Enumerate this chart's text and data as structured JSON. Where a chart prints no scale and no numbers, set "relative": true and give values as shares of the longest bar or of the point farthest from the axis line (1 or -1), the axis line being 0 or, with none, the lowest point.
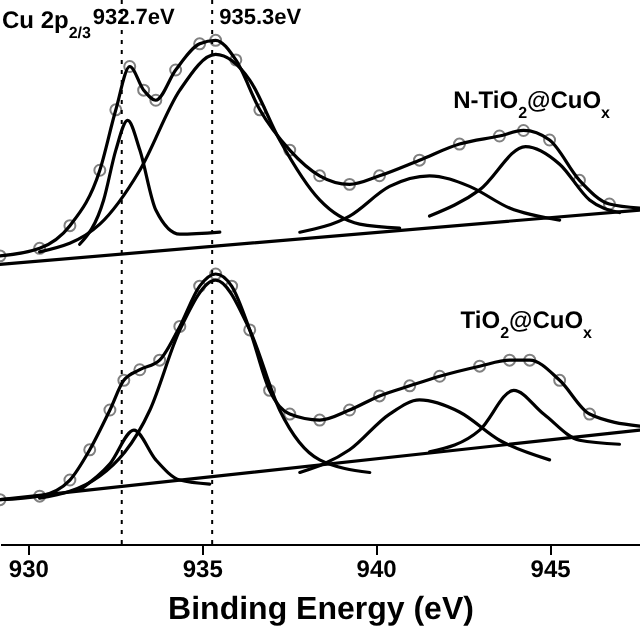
{
  "chart_data": {
    "type": "line",
    "xlabel": "Binding Energy (eV)",
    "relative": true,
    "xlim": [
      929.2,
      947.6
    ],
    "xticks": [
      930,
      935,
      940,
      945
    ],
    "line_style": "solid",
    "series": [
      {
        "type": "scatter",
        "marker": "circle",
        "color": "#808080",
        "x": [
          929.2,
          930.34,
          931.21,
          932.07,
          932.53,
          932.93,
          933.33,
          933.68,
          934.25,
          934.94,
          935.4,
          935.98,
          936.67,
          937.53,
          938.39,
          939.25,
          940.11,
          941.26,
          942.41,
          943.56,
          944.25,
          945.0,
          945.86,
          946.72
        ],
        "values": [
          0.572,
          0.587,
          0.632,
          0.742,
          0.862,
          0.948,
          0.901,
          0.881,
          0.941,
          0.993,
          1,
          0.961,
          0.862,
          0.782,
          0.731,
          0.714,
          0.731,
          0.762,
          0.794,
          0.81,
          0.821,
          0.802,
          0.722,
          0.675
        ]
      },
      {
        "color": "#000000",
        "x": [
          929.2,
          930.34,
          931.21,
          932.07,
          932.53,
          932.93,
          933.33,
          933.68,
          934.25,
          934.94,
          935.4,
          935.98,
          936.67,
          937.53,
          938.39,
          939.25,
          940.11,
          941.26,
          942.41,
          943.56,
          944.25,
          945.0,
          945.86,
          946.72,
          947.59
        ],
        "values": [
          0.572,
          0.587,
          0.632,
          0.742,
          0.862,
          0.948,
          0.901,
          0.881,
          0.941,
          0.993,
          1,
          0.961,
          0.862,
          0.782,
          0.731,
          0.714,
          0.731,
          0.762,
          0.794,
          0.81,
          0.821,
          0.802,
          0.722,
          0.675,
          0.667
        ]
      },
      {
        "color": "#000000",
        "x": [
          929.2,
          947.59
        ],
        "values": [
          0.555,
          0.663
        ]
      },
      {
        "color": "#000000",
        "x": [
          931.49,
          932.18,
          932.53,
          932.87,
          933.22,
          933.68,
          934.37,
          935.52
        ],
        "values": [
          0.595,
          0.683,
          0.782,
          0.841,
          0.782,
          0.663,
          0.615,
          0.619
        ]
      },
      {
        "color": "#000000",
        "x": [
          930.34,
          932.07,
          933.22,
          934.37,
          935.4,
          936.38,
          937.24,
          938.39,
          939.54,
          940.69
        ],
        "values": [
          0.58,
          0.635,
          0.742,
          0.901,
          0.972,
          0.921,
          0.802,
          0.683,
          0.635,
          0.627
        ]
      },
      {
        "color": "#000000",
        "x": [
          937.82,
          939.25,
          940.4,
          941.55,
          942.7,
          943.85,
          945.29
        ],
        "values": [
          0.619,
          0.651,
          0.71,
          0.731,
          0.71,
          0.667,
          0.643
        ]
      },
      {
        "color": "#000000",
        "x": [
          941.55,
          942.99,
          944.31,
          945.29,
          946.15,
          947.01
        ],
        "values": [
          0.651,
          0.703,
          0.789,
          0.754,
          0.683,
          0.658
        ]
      },
      {
        "type": "scatter",
        "marker": "circle",
        "color": "#808080",
        "x": [
          929.2,
          930.34,
          931.21,
          931.78,
          932.36,
          932.76,
          933.22,
          933.79,
          934.37,
          934.94,
          935.4,
          935.86,
          936.38,
          936.95,
          937.53,
          938.39,
          939.25,
          940.11,
          940.98,
          941.84,
          942.99,
          943.85,
          944.43,
          945.29,
          946.15
        ],
        "values": [
          0.088,
          0.095,
          0.127,
          0.187,
          0.266,
          0.325,
          0.346,
          0.365,
          0.432,
          0.512,
          0.536,
          0.512,
          0.425,
          0.305,
          0.258,
          0.246,
          0.266,
          0.294,
          0.314,
          0.333,
          0.353,
          0.365,
          0.365,
          0.325,
          0.258
        ]
      },
      {
        "color": "#000000",
        "x": [
          929.2,
          930.34,
          931.21,
          931.78,
          932.36,
          932.76,
          933.22,
          933.79,
          934.37,
          934.94,
          935.4,
          935.86,
          936.38,
          936.95,
          937.53,
          938.39,
          939.25,
          940.11,
          940.98,
          941.84,
          942.99,
          943.85,
          944.43,
          945.29,
          946.15,
          947.59
        ],
        "values": [
          0.088,
          0.095,
          0.127,
          0.187,
          0.266,
          0.325,
          0.346,
          0.365,
          0.432,
          0.512,
          0.536,
          0.512,
          0.425,
          0.305,
          0.258,
          0.246,
          0.266,
          0.294,
          0.314,
          0.333,
          0.353,
          0.365,
          0.365,
          0.325,
          0.258,
          0.234
        ]
      },
      {
        "color": "#000000",
        "x": [
          929.2,
          947.59
        ],
        "values": [
          0.088,
          0.226
        ]
      },
      {
        "color": "#000000",
        "x": [
          931.49,
          932.36,
          933.05,
          933.68,
          934.37,
          935.23
        ],
        "values": [
          0.107,
          0.159,
          0.226,
          0.167,
          0.127,
          0.119
        ]
      },
      {
        "color": "#000000",
        "x": [
          930.34,
          932.07,
          933.51,
          934.37,
          935.4,
          936.38,
          937.24,
          938.39,
          939.83
        ],
        "values": [
          0.091,
          0.135,
          0.266,
          0.425,
          0.524,
          0.425,
          0.266,
          0.167,
          0.142
        ]
      },
      {
        "color": "#000000",
        "x": [
          937.82,
          939.25,
          940.4,
          941.26,
          942.41,
          943.56,
          945.0
        ],
        "values": [
          0.142,
          0.187,
          0.258,
          0.286,
          0.262,
          0.206,
          0.167
        ]
      },
      {
        "color": "#000000",
        "x": [
          941.55,
          942.99,
          943.97,
          944.83,
          945.86,
          947.01
        ],
        "values": [
          0.183,
          0.226,
          0.305,
          0.258,
          0.206,
          0.198
        ]
      }
    ],
    "ref_lines": [
      {
        "axis": "x",
        "value": 932.7,
        "label": "932.7eV",
        "line_style": "dotted",
        "color": "#000000"
      },
      {
        "axis": "x",
        "value": 935.3,
        "label": "935.3eV",
        "line_style": "dotted",
        "color": "#000000"
      }
    ],
    "annotations": [
      "Cu 2p$_{2/3}$",
      "N-TiO$_{2}$@CuO$_{x}$",
      "TiO$_{2}$@CuO$_{x}$"
    ]
  }
}
